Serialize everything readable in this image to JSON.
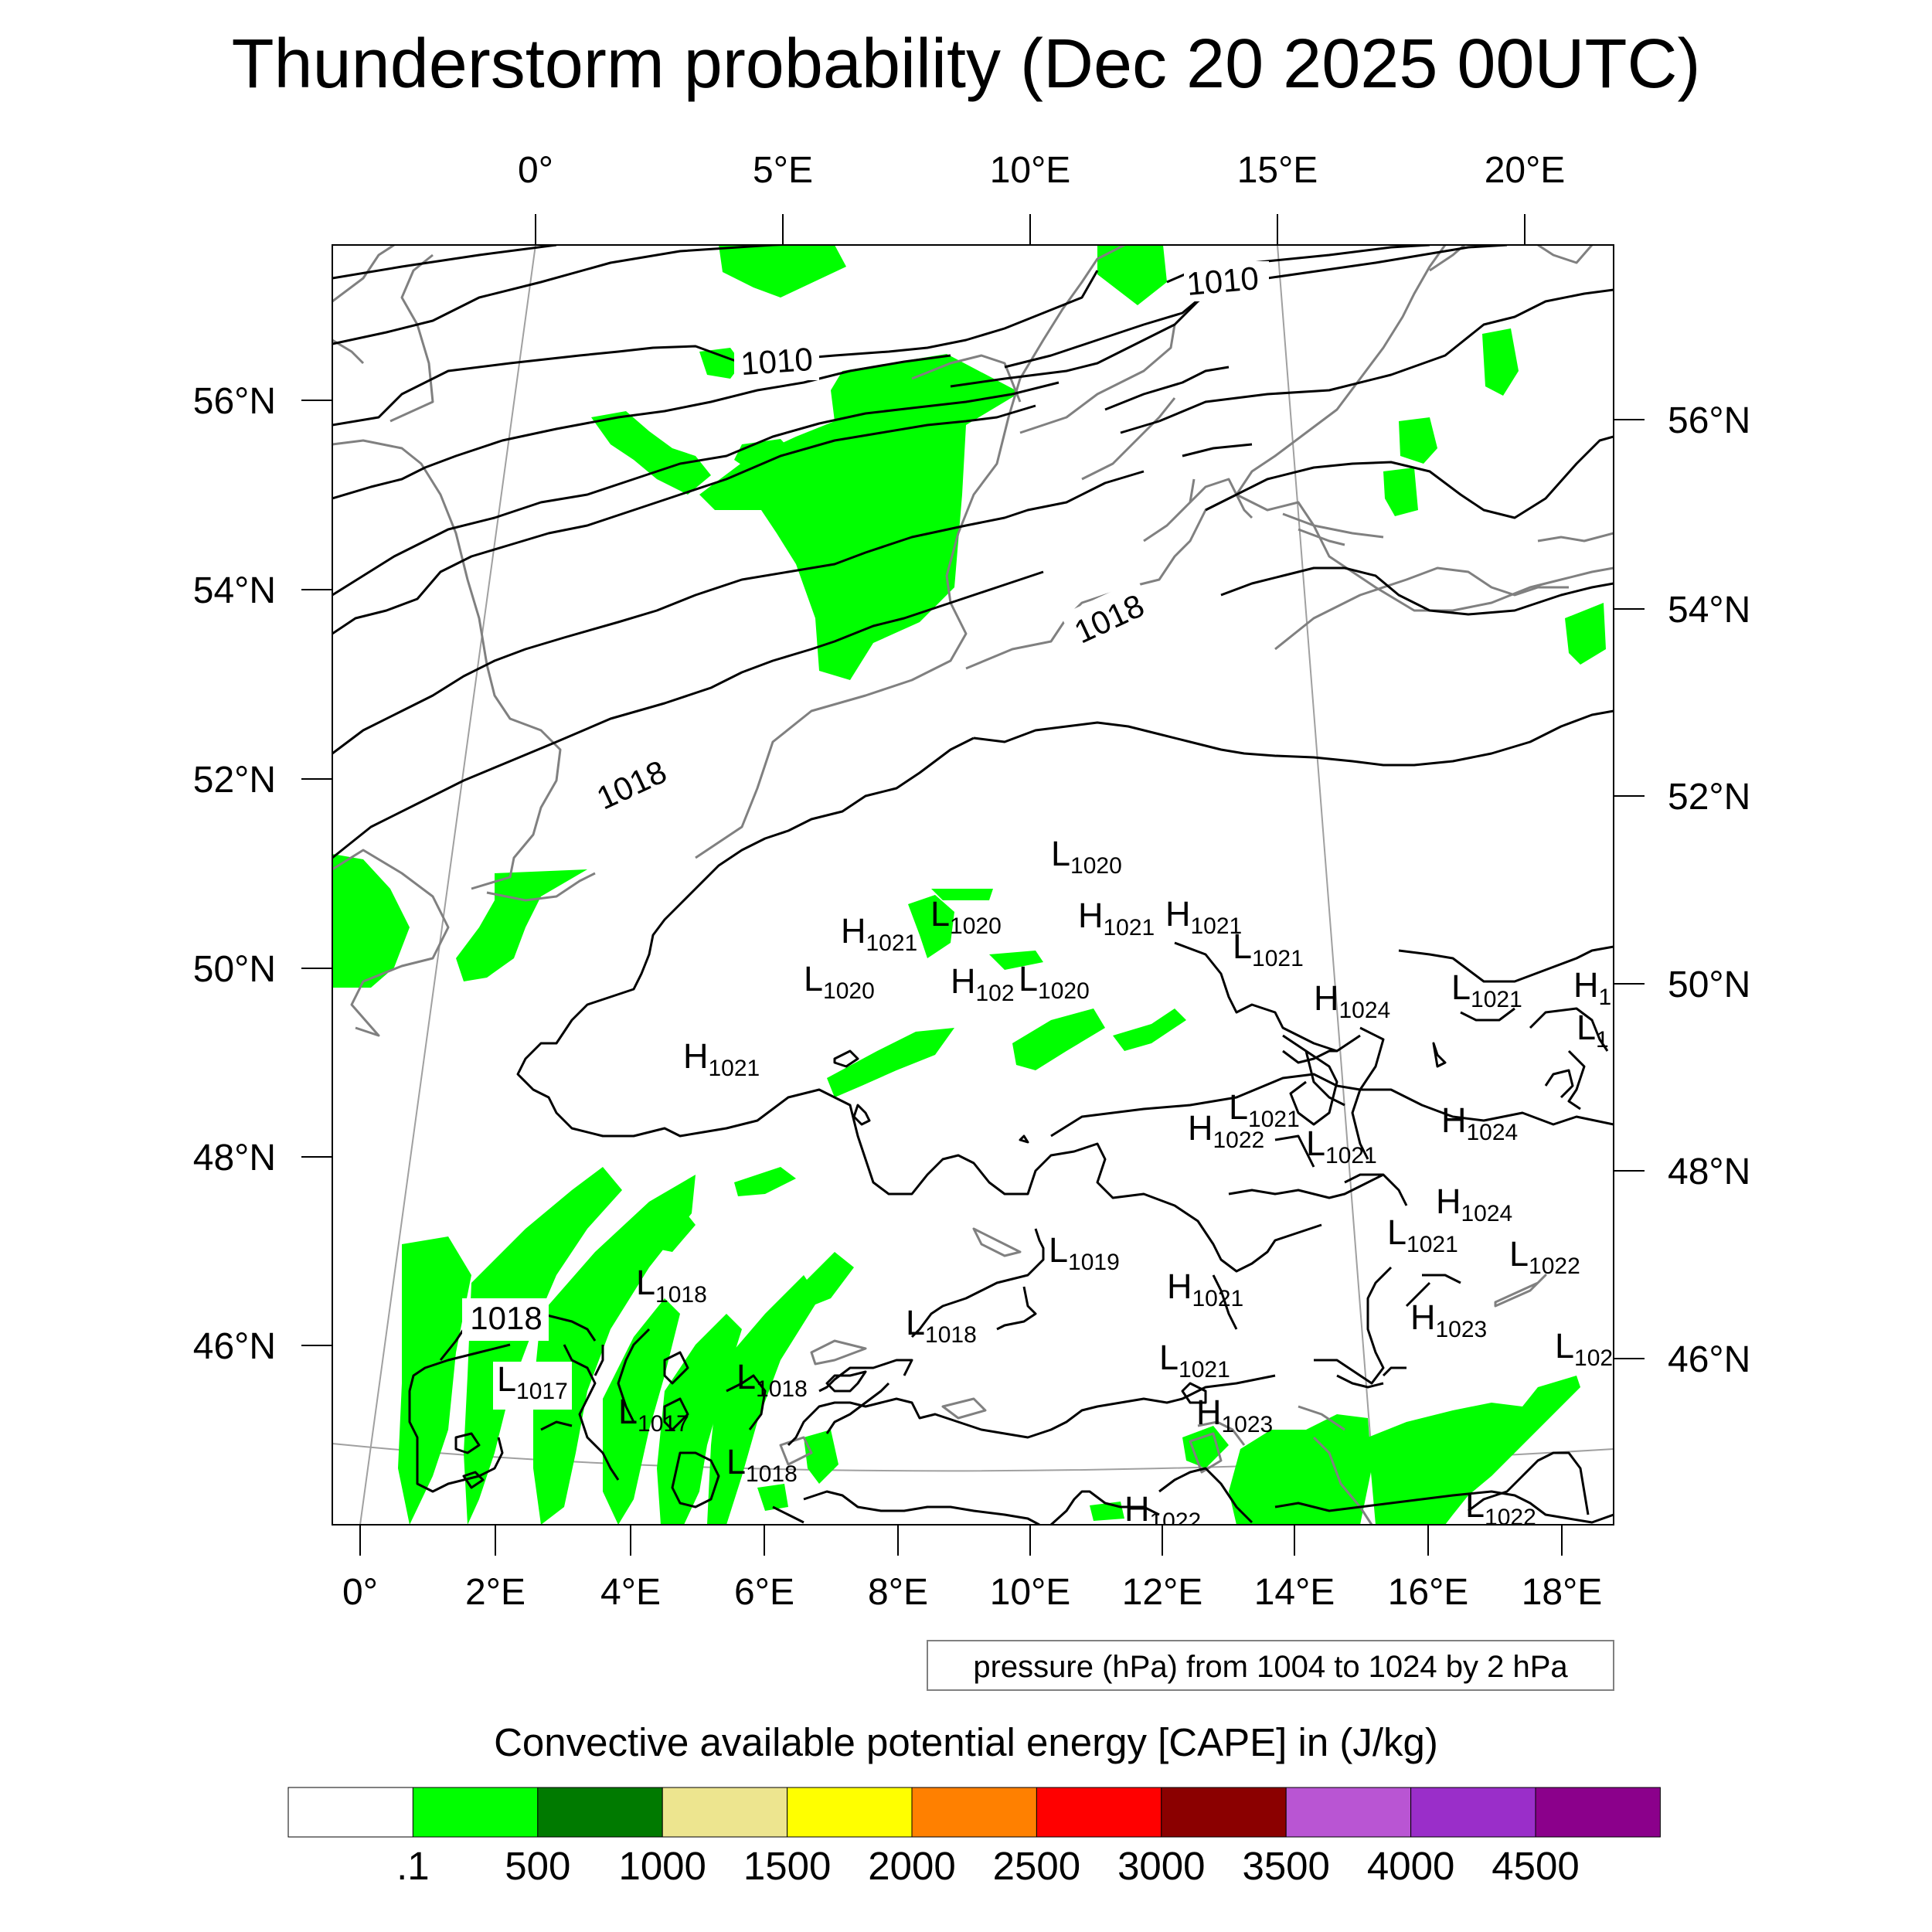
{
  "title": "Thunderstorm probability (Dec 20 2025 00UTC)",
  "lon_top_labels": [
    "0°",
    "5°E",
    "10°E",
    "15°E",
    "20°E"
  ],
  "lon_bottom_labels": [
    "0°",
    "2°E",
    "4°E",
    "6°E",
    "8°E",
    "10°E",
    "12°E",
    "14°E",
    "16°E",
    "18°E"
  ],
  "lat_left_labels": [
    "56°N",
    "54°N",
    "52°N",
    "50°N",
    "48°N",
    "46°N"
  ],
  "lat_right_labels": [
    "56°N",
    "54°N",
    "52°N",
    "50°N",
    "48°N",
    "46°N"
  ],
  "isobar_labels": [
    "1010",
    "1010",
    "1018",
    "1018",
    "1018"
  ],
  "pressure_centers": [
    {
      "type": "L",
      "value": "1020"
    },
    {
      "type": "H",
      "value": "1021"
    },
    {
      "type": "L",
      "value": "1020"
    },
    {
      "type": "H",
      "value": "1021"
    },
    {
      "type": "H",
      "value": "1021"
    },
    {
      "type": "L",
      "value": "1021"
    },
    {
      "type": "L",
      "value": "1020"
    },
    {
      "type": "H",
      "value": "102"
    },
    {
      "type": "L",
      "value": "1020"
    },
    {
      "type": "H",
      "value": "1024"
    },
    {
      "type": "L",
      "value": "1021"
    },
    {
      "type": "H",
      "value": "1"
    },
    {
      "type": "L",
      "value": "1"
    },
    {
      "type": "H",
      "value": "1021"
    },
    {
      "type": "L",
      "value": "1021"
    },
    {
      "type": "H",
      "value": "1022"
    },
    {
      "type": "L",
      "value": "1021"
    },
    {
      "type": "H",
      "value": "1024"
    },
    {
      "type": "H",
      "value": "1024"
    },
    {
      "type": "L",
      "value": "1021"
    },
    {
      "type": "L",
      "value": "1022"
    },
    {
      "type": "L",
      "value": "1019"
    },
    {
      "type": "H",
      "value": "1021"
    },
    {
      "type": "L",
      "value": "1018"
    },
    {
      "type": "H",
      "value": "1023"
    },
    {
      "type": "L",
      "value": "1018"
    },
    {
      "type": "L",
      "value": "1017"
    },
    {
      "type": "L",
      "value": "1017"
    },
    {
      "type": "L",
      "value": "1018"
    },
    {
      "type": "L",
      "value": "1021"
    },
    {
      "type": "L",
      "value": "102"
    },
    {
      "type": "H",
      "value": "1023"
    },
    {
      "type": "L",
      "value": "1018"
    },
    {
      "type": "H",
      "value": "1022"
    },
    {
      "type": "L",
      "value": "1022"
    }
  ],
  "contour_info": "pressure (hPa) from 1004 to 1024 by 2 hPa",
  "colorbar": {
    "title": "Convective available potential energy [CAPE] in (J/kg)",
    "colors": [
      "#ffffff",
      "#00ff00",
      "#007a00",
      "#ede58f",
      "#ffff00",
      "#ff8000",
      "#ff0000",
      "#8b0000",
      "#b955d3",
      "#9a2ec9",
      "#8b008b"
    ],
    "labels": [
      ".1",
      "500",
      "1000",
      "1500",
      "2000",
      "2500",
      "3000",
      "3500",
      "4000",
      "4500"
    ]
  },
  "colors": {
    "isobar": "#000000",
    "coastline": "#808080",
    "graticule": "#a0a0a0",
    "cape_fill": "#00ff00"
  }
}
